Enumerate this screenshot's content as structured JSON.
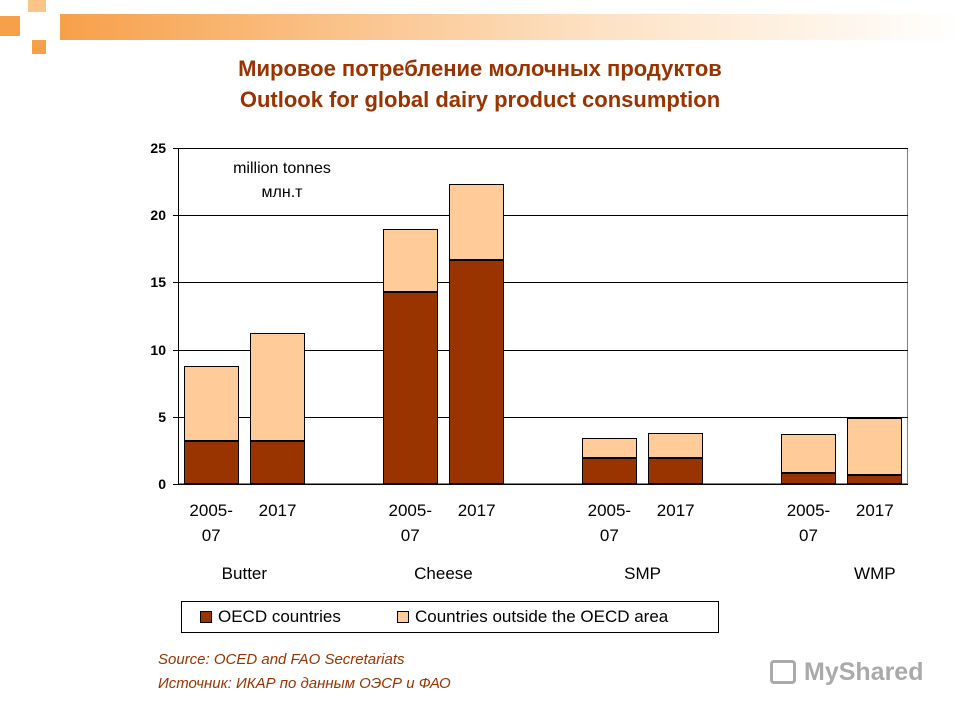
{
  "chart_data": {
    "type": "bar",
    "stacked": true,
    "title": "Мировое потребление молочных продуктов",
    "subtitle": "Outlook for global dairy product consumption",
    "annotations": [
      "million tonnes",
      "млн.т"
    ],
    "categories": [
      "2005-07",
      "2017",
      null,
      "2005-07",
      "2017",
      null,
      "2005-07",
      "2017",
      null,
      "2005-07",
      "2017"
    ],
    "groups": [
      "Butter",
      "Cheese",
      "SMP",
      "WMP"
    ],
    "series": [
      {
        "name": "OECD countries",
        "color": "#993300",
        "values": [
          3.2,
          3.2,
          null,
          14.3,
          16.7,
          null,
          1.9,
          1.9,
          null,
          0.8,
          0.7
        ]
      },
      {
        "name": "Countries outside the OECD area",
        "color": "#FFCC99",
        "values": [
          5.6,
          8.0,
          null,
          4.7,
          5.6,
          null,
          1.5,
          1.9,
          null,
          2.9,
          4.2
        ]
      }
    ],
    "ylim": [
      0,
      25
    ],
    "yticks": [
      0,
      5,
      10,
      15,
      20,
      25
    ],
    "grid": true,
    "source": [
      "Source: OCED and FAO Secretariats",
      "Источник: ИКАР по данным ОЭСР и ФАО"
    ],
    "watermark": "MyShared"
  }
}
